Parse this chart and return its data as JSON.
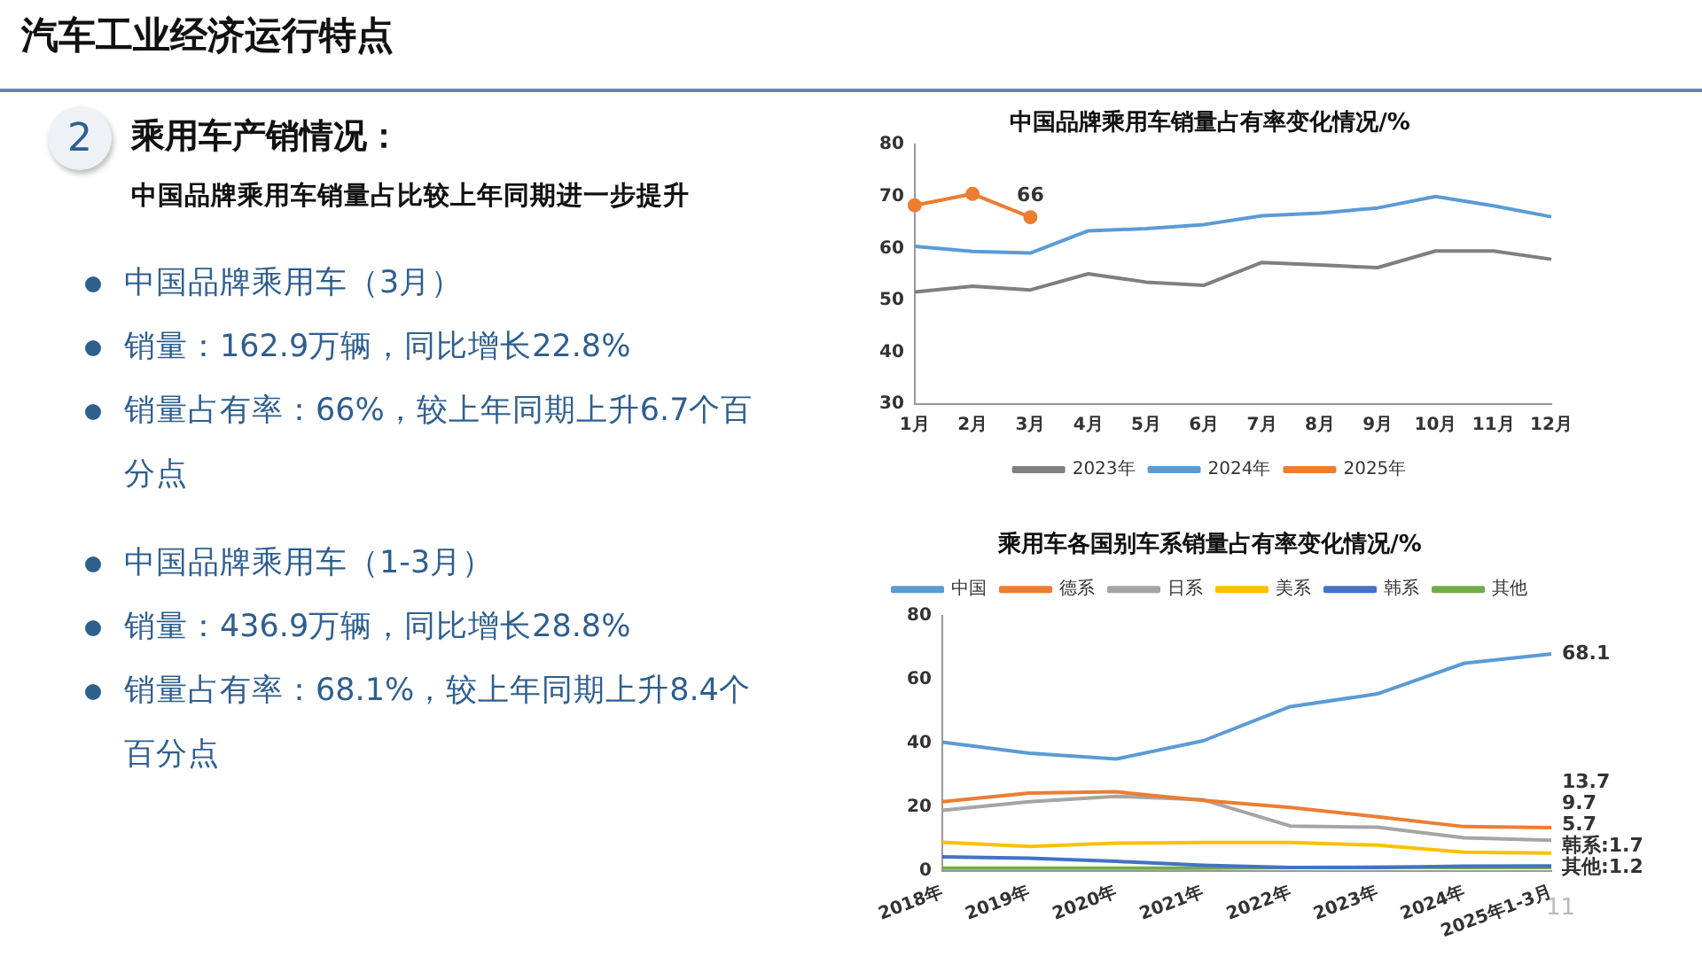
{
  "chart_data": [
    {
      "type": "other",
      "title": "汽车工业经济运行特点",
      "subtitle": "乘用车产销情况：",
      "annotations": [
        "2",
        "中国品牌乘用车销量占比较上年同期进一步提升",
        "中国品牌乘用车（3月）",
        "销量：162.9万辆，同比增长22.8%",
        "销量占有率：66%，较上年同期上升6.7个百分点",
        "中国品牌乘用车（1-3月）",
        "销量：436.9万辆，同比增长28.8%",
        "销量占有率：68.1%，较上年同期上升8.4个百分点",
        "11"
      ]
    },
    {
      "type": "line",
      "title": "中国品牌乘用车销量占有率变化情况/%",
      "categories": [
        "1月",
        "2月",
        "3月",
        "4月",
        "5月",
        "6月",
        "7月",
        "8月",
        "9月",
        "10月",
        "11月",
        "12月"
      ],
      "ylim": [
        30,
        80
      ],
      "yticks": [
        30,
        40,
        50,
        60,
        70,
        80
      ],
      "grid": false,
      "legend": "bottom",
      "marker": "none",
      "series": [
        {
          "name": "2023年",
          "color": "#7f7f7f",
          "values": [
            51.6,
            52.7,
            52,
            55.1,
            53.5,
            52.9,
            57.3,
            56.8,
            56.3,
            59.5,
            59.5,
            57.9
          ]
        },
        {
          "name": "2024年",
          "color": "#5b9bd5",
          "values": [
            60.4,
            59.4,
            59.1,
            63.4,
            63.8,
            64.6,
            66.3,
            66.8,
            67.8,
            70,
            68.2,
            66.1
          ]
        },
        {
          "name": "2025年",
          "color": "#ed7d31",
          "marker": "circle",
          "values": [
            68.3,
            70.5,
            66,
            null,
            null,
            null,
            null,
            null,
            null,
            null,
            null,
            null
          ],
          "value_labels": [
            null,
            null,
            "66",
            null,
            null,
            null,
            null,
            null,
            null,
            null,
            null,
            null
          ]
        }
      ]
    },
    {
      "type": "line",
      "title": "乘用车各国别车系销量占有率变化情况/%",
      "categories": [
        "2018年",
        "2019年",
        "2020年",
        "2021年",
        "2022年",
        "2023年",
        "2024年",
        "2025年1-3月"
      ],
      "ylim": [
        0,
        80
      ],
      "yticks": [
        0,
        20,
        40,
        60,
        80
      ],
      "grid": false,
      "legend": "top",
      "marker": "none",
      "series": [
        {
          "name": "中国",
          "color": "#5b9bd5",
          "values": [
            40.5,
            37,
            35.2,
            40.9,
            51.6,
            55.6,
            65.2,
            68.1
          ],
          "value_labels": [
            null,
            null,
            null,
            null,
            null,
            null,
            null,
            "68.1"
          ]
        },
        {
          "name": "德系",
          "color": "#ed7d31",
          "values": [
            21.8,
            24.5,
            24.9,
            22.2,
            20,
            17.1,
            14,
            13.7
          ],
          "value_labels": [
            null,
            null,
            null,
            null,
            null,
            null,
            null,
            "13.7"
          ]
        },
        {
          "name": "日系",
          "color": "#a5a5a5",
          "values": [
            19.1,
            21.8,
            23.5,
            22.4,
            14.2,
            13.8,
            10.5,
            9.7
          ],
          "value_labels": [
            null,
            null,
            null,
            null,
            null,
            null,
            null,
            "9.7"
          ]
        },
        {
          "name": "美系",
          "color": "#ffc000",
          "values": [
            9.1,
            7.8,
            8.8,
            9,
            9,
            8.2,
            6,
            5.7
          ],
          "value_labels": [
            null,
            null,
            null,
            null,
            null,
            null,
            null,
            "5.7"
          ]
        },
        {
          "name": "韩系",
          "color": "#4472c4",
          "values": [
            4.5,
            4.1,
            3.1,
            1.9,
            1.2,
            1.2,
            1.6,
            1.7
          ],
          "value_labels": [
            null,
            null,
            null,
            null,
            null,
            null,
            null,
            "韩系:1.7"
          ]
        },
        {
          "name": "其他",
          "color": "#70ad47",
          "values": [
            1,
            1,
            1,
            1,
            1.2,
            1.3,
            1.2,
            1.2
          ],
          "value_labels": [
            null,
            null,
            null,
            null,
            null,
            null,
            null,
            "其他:1.2"
          ]
        }
      ]
    }
  ]
}
